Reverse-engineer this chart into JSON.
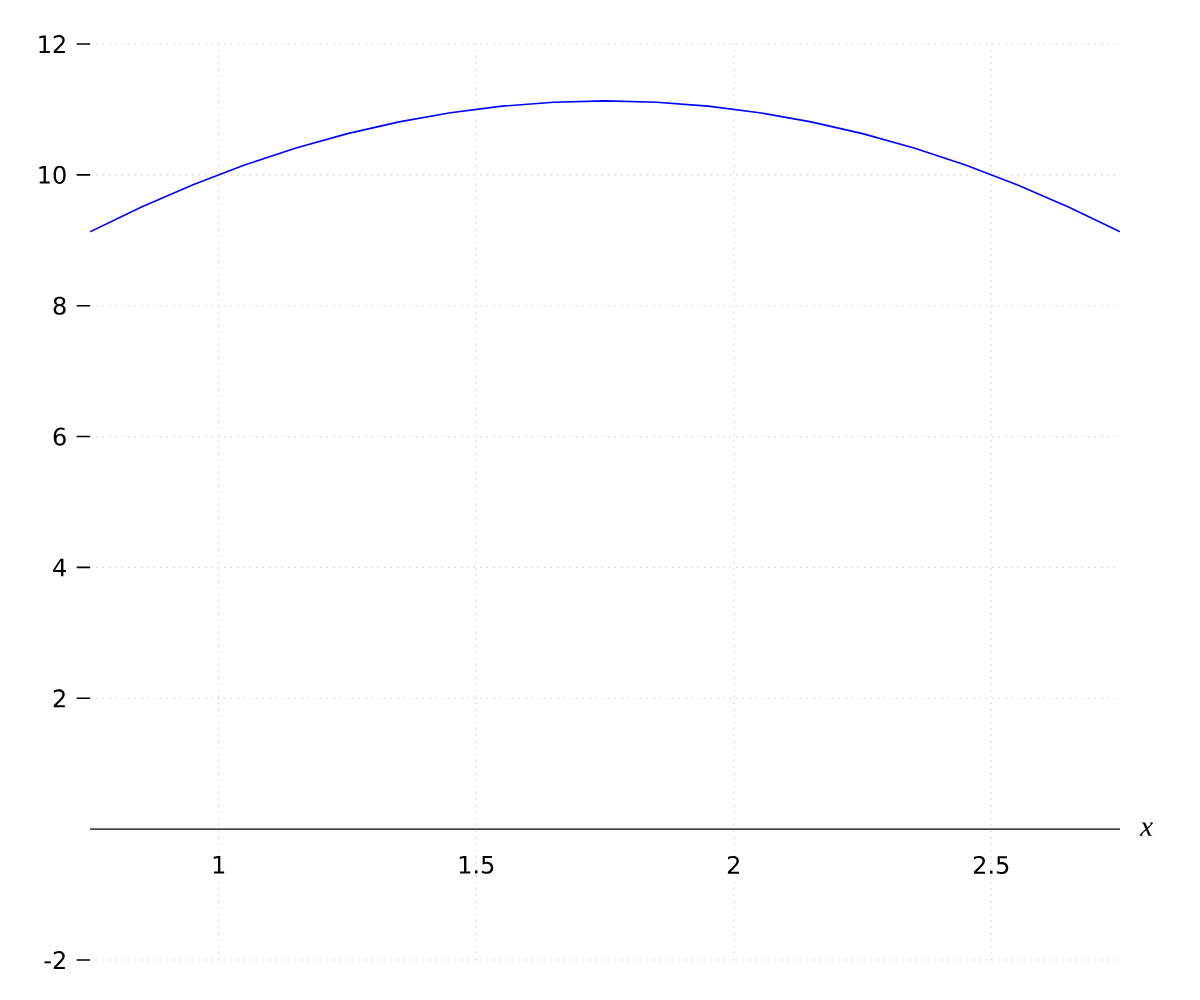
{
  "chart_data": {
    "type": "line",
    "xlabel": "x",
    "x": [
      0.75,
      0.85,
      0.95,
      1.05,
      1.15,
      1.25,
      1.35,
      1.45,
      1.55,
      1.65,
      1.75,
      1.85,
      1.95,
      2.05,
      2.15,
      2.25,
      2.35,
      2.45,
      2.55,
      2.65,
      2.75
    ],
    "series": [
      {
        "color": "#0000ff",
        "values": [
          9.13,
          9.51,
          9.85,
          10.15,
          10.41,
          10.63,
          10.81,
          10.95,
          11.05,
          11.11,
          11.13,
          11.11,
          11.05,
          10.95,
          10.81,
          10.63,
          10.41,
          10.15,
          9.85,
          9.51,
          9.13
        ]
      }
    ],
    "xlim": [
      0.75,
      2.75
    ],
    "ylim": [
      -2,
      12
    ],
    "xticks": [
      1,
      1.5,
      2,
      2.5
    ],
    "yticks": [
      -2,
      2,
      4,
      6,
      8,
      10,
      12
    ],
    "grid": true,
    "marker": "none",
    "line_style": "solid"
  }
}
